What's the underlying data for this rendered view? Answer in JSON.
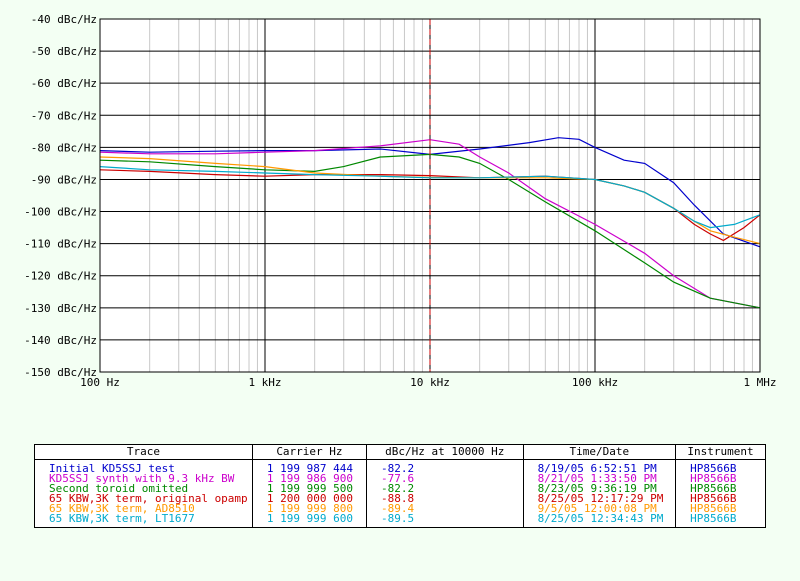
{
  "chart_data": {
    "type": "line",
    "title": "",
    "xscale": "log",
    "xlim": [
      100,
      1000000
    ],
    "ylim": [
      -150,
      -40
    ],
    "grid": true,
    "marker_x": 10000,
    "y_ticks": [
      -40,
      -50,
      -60,
      -70,
      -80,
      -90,
      -100,
      -110,
      -120,
      -130,
      -140,
      -150
    ],
    "y_tick_labels": [
      "-40 dBc/Hz",
      "-50 dBc/Hz",
      "-60 dBc/Hz",
      "-70 dBc/Hz",
      "-80 dBc/Hz",
      "-90 dBc/Hz",
      "-100 dBc/Hz",
      "-110 dBc/Hz",
      "-120 dBc/Hz",
      "-130 dBc/Hz",
      "-140 dBc/Hz",
      "-150 dBc/Hz"
    ],
    "x_ticks": [
      100,
      1000,
      10000,
      100000,
      1000000
    ],
    "x_tick_labels": [
      "100 Hz",
      "1 kHz",
      "10 kHz",
      "100 kHz",
      "1 MHz"
    ],
    "series": [
      {
        "name": "Initial KD5SSJ test",
        "color": "#0000cc",
        "x": [
          100,
          200,
          500,
          1000,
          2000,
          5000,
          10000,
          20000,
          40000,
          60000,
          80000,
          100000,
          150000,
          200000,
          300000,
          400000,
          600000,
          1000000
        ],
        "y": [
          -81,
          -81.5,
          -81.2,
          -81,
          -81,
          -80.5,
          -82.2,
          -80.5,
          -78.5,
          -77,
          -77.5,
          -80,
          -84,
          -85,
          -91,
          -98,
          -107,
          -111
        ]
      },
      {
        "name": "KD5SSJ synth with 9.3 kHz BW",
        "color": "#cc00cc",
        "x": [
          100,
          200,
          500,
          1000,
          2000,
          5000,
          10000,
          15000,
          20000,
          30000,
          50000,
          100000,
          200000,
          300000,
          500000,
          1000000
        ],
        "y": [
          -81.5,
          -82,
          -82,
          -81.5,
          -81,
          -79.5,
          -77.6,
          -79,
          -83,
          -88,
          -96,
          -104,
          -113,
          -120,
          -127,
          -130
        ]
      },
      {
        "name": "Second toroid omitted",
        "color": "#008800",
        "x": [
          100,
          200,
          500,
          1000,
          2000,
          3000,
          5000,
          10000,
          15000,
          20000,
          30000,
          50000,
          100000,
          200000,
          300000,
          500000,
          1000000
        ],
        "y": [
          -84,
          -84.5,
          -86,
          -87,
          -87.5,
          -86,
          -83,
          -82.2,
          -83,
          -85,
          -90,
          -97,
          -106,
          -116,
          -122,
          -127,
          -130
        ]
      },
      {
        "name": "65 KBW,3K term, original opamp",
        "color": "#cc0000",
        "x": [
          100,
          200,
          500,
          1000,
          2000,
          5000,
          10000,
          20000,
          50000,
          100000,
          150000,
          200000,
          300000,
          400000,
          500000,
          600000,
          800000,
          1000000
        ],
        "y": [
          -87,
          -87.5,
          -88.5,
          -89,
          -88.5,
          -88.5,
          -88.8,
          -89.5,
          -89,
          -90,
          -92,
          -94,
          -99,
          -104,
          -107,
          -109,
          -105,
          -101
        ]
      },
      {
        "name": "65 KBW,3K term, AD8510",
        "color": "#ff9900",
        "x": [
          100,
          200,
          500,
          1000,
          2000,
          5000,
          10000,
          20000,
          50000,
          100000,
          150000,
          200000,
          300000,
          400000,
          500000,
          700000,
          1000000
        ],
        "y": [
          -83,
          -83.5,
          -85,
          -86,
          -88,
          -89,
          -89.4,
          -89.5,
          -89.5,
          -90,
          -92,
          -94,
          -99,
          -103,
          -106,
          -108,
          -110
        ]
      },
      {
        "name": "65 KBW,3K term, LT1677",
        "color": "#00aacc",
        "x": [
          100,
          200,
          500,
          1000,
          2000,
          5000,
          10000,
          20000,
          50000,
          100000,
          150000,
          200000,
          300000,
          400000,
          500000,
          700000,
          1000000
        ],
        "y": [
          -86,
          -87,
          -87.5,
          -88,
          -88.5,
          -89,
          -89.5,
          -89.5,
          -89,
          -90,
          -92,
          -94,
          -99,
          -103,
          -105,
          -104,
          -101
        ]
      }
    ]
  },
  "legend_table": {
    "headers": {
      "trace": "Trace",
      "carrier": "Carrier Hz",
      "dbc": "dBc/Hz at 10000 Hz",
      "time": "Time/Date",
      "instrument": "Instrument"
    },
    "rows": [
      {
        "trace": "Initial KD5SSJ test",
        "carrier": "1 199 987 444",
        "dbc": "-82.2",
        "time": "8/19/05 6:52:51 PM",
        "instrument": "HP8566B",
        "color": "#0000cc"
      },
      {
        "trace": "KD5SSJ synth with 9.3 kHz BW",
        "carrier": "1 199 986 900",
        "dbc": "-77.6",
        "time": "8/21/05 1:33:50 PM",
        "instrument": "HP8566B",
        "color": "#cc00cc"
      },
      {
        "trace": "Second toroid omitted",
        "carrier": "1 199 999 500",
        "dbc": "-82.2",
        "time": "8/23/05 9:36:19 PM",
        "instrument": "HP8566B",
        "color": "#008800"
      },
      {
        "trace": "65 KBW,3K term, original opamp",
        "carrier": "1 200 000 000",
        "dbc": "-88.8",
        "time": "8/25/05 12:17:29 PM",
        "instrument": "HP8566B",
        "color": "#cc0000"
      },
      {
        "trace": "65 KBW,3K term, AD8510",
        "carrier": "1 199 999 800",
        "dbc": "-89.4",
        "time": "9/5/05 12:00:08 PM",
        "instrument": "HP8566B",
        "color": "#ff9900"
      },
      {
        "trace": "65 KBW,3K term, LT1677",
        "carrier": "1 199 999 600",
        "dbc": "-89.5",
        "time": "8/25/05 12:34:43 PM",
        "instrument": "HP8566B",
        "color": "#00aacc"
      }
    ]
  }
}
